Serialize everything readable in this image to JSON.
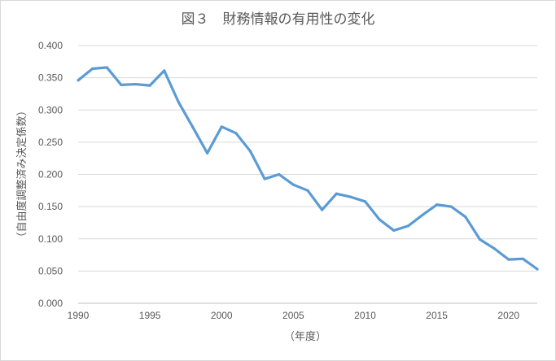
{
  "chart_data": {
    "type": "line",
    "title": "図３　財務情報の有用性の変化",
    "xlabel": "（年度）",
    "ylabel": "（自由度調整済み決定係数）",
    "xlim": [
      1990,
      2022
    ],
    "ylim": [
      0,
      0.4
    ],
    "x_ticks": [
      "1990",
      "1995",
      "2000",
      "2005",
      "2010",
      "2015",
      "2020"
    ],
    "y_ticks": [
      "0.000",
      "0.050",
      "0.100",
      "0.150",
      "0.200",
      "0.250",
      "0.300",
      "0.350",
      "0.400"
    ],
    "grid": true,
    "legend": "none",
    "colors": {
      "line": "#5b9bd5"
    },
    "series": [
      {
        "x": [
          1990,
          1991,
          1992,
          1993,
          1994,
          1995,
          1996,
          1997,
          1998,
          1999,
          2000,
          2001,
          2002,
          2003,
          2004,
          2005,
          2006,
          2007,
          2008,
          2009,
          2010,
          2011,
          2012,
          2013,
          2014,
          2015,
          2016,
          2017,
          2018,
          2019,
          2020,
          2021,
          2022
        ],
        "values": [
          0.346,
          0.364,
          0.366,
          0.339,
          0.34,
          0.338,
          0.361,
          0.312,
          0.273,
          0.233,
          0.274,
          0.264,
          0.236,
          0.193,
          0.2,
          0.184,
          0.175,
          0.145,
          0.17,
          0.165,
          0.158,
          0.13,
          0.113,
          0.12,
          0.137,
          0.153,
          0.15,
          0.134,
          0.099,
          0.085,
          0.068,
          0.069,
          0.053
        ]
      }
    ]
  }
}
